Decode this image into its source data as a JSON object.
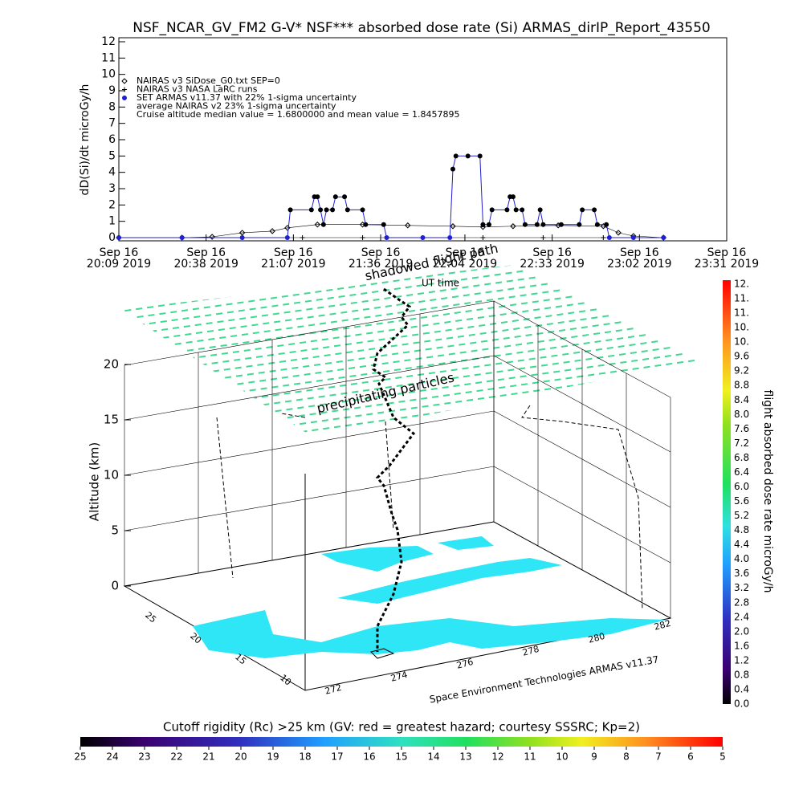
{
  "chart_data": [
    {
      "type": "line",
      "title": "NSF_NCAR_GV_FM2 G-V* NSF*** absorbed dose rate (Si) ARMAS_dirIP_Report_43550",
      "y_label": "dD(Si)/dt microGy/h",
      "xlim": [
        "20:09",
        "23:31"
      ],
      "xticks": [
        {
          "value": "20:09",
          "label": [
            "Sep 16",
            "20:09 2019"
          ]
        },
        {
          "value": "20:38",
          "label": [
            "Sep 16",
            "20:38 2019"
          ]
        },
        {
          "value": "21:07",
          "label": [
            "Sep 16",
            "21:07 2019"
          ]
        },
        {
          "value": "21:36",
          "label": [
            "Sep 16",
            "21:36 2019"
          ]
        },
        {
          "value": "22:04",
          "label": [
            "Sep 16",
            "22:04 2019"
          ]
        },
        {
          "value": "22:33",
          "label": [
            "Sep 16",
            "22:33 2019"
          ]
        },
        {
          "value": "23:02",
          "label": [
            "Sep 16",
            "23:02 2019"
          ]
        },
        {
          "value": "23:31",
          "label": [
            "Sep 16",
            "23:31 2019"
          ]
        }
      ],
      "ylim": [
        0,
        12
      ],
      "yticks": [
        0,
        1,
        2,
        3,
        4,
        5,
        6,
        7,
        8,
        9,
        10,
        11,
        12
      ],
      "series": [
        {
          "name": "NAIRAS v3 SiDose_G0.txt SEP=0",
          "marker": "diamond",
          "color": "#000000",
          "x": [
            "20:09",
            "20:30",
            "20:40",
            "20:50",
            "21:00",
            "21:05",
            "21:15",
            "21:30",
            "21:45",
            "22:00",
            "22:10",
            "22:20",
            "22:35",
            "22:50",
            "22:55",
            "23:00",
            "23:10"
          ],
          "values": [
            0,
            0,
            0.05,
            0.3,
            0.4,
            0.6,
            0.8,
            0.8,
            0.75,
            0.7,
            0.65,
            0.7,
            0.75,
            0.7,
            0.3,
            0.1,
            0
          ]
        },
        {
          "name": "NAIRAS v3 NASA LaRC runs",
          "marker": "plus",
          "color": "#000000",
          "x": [
            "20:09",
            "20:30",
            "20:50",
            "21:10",
            "21:30",
            "21:50",
            "22:10",
            "22:30",
            "22:50",
            "23:10"
          ],
          "values": [
            0,
            0,
            0,
            0,
            0,
            0,
            0,
            0,
            0,
            0
          ]
        },
        {
          "name": "SET ARMAS v11.37 with 22% 1-sigma uncertainty",
          "marker": "dot",
          "color": "#2020d0",
          "x": [
            "20:09",
            "20:30",
            "20:50",
            "21:05",
            "21:06",
            "21:13",
            "21:14",
            "21:15",
            "21:16",
            "21:17",
            "21:18",
            "21:20",
            "21:21",
            "21:24",
            "21:25",
            "21:30",
            "21:31",
            "21:37",
            "21:38",
            "21:50",
            "21:59",
            "22:00",
            "22:01",
            "22:05",
            "22:09",
            "22:10",
            "22:12",
            "22:13",
            "22:18",
            "22:19",
            "22:20",
            "22:21",
            "22:23",
            "22:24",
            "22:28",
            "22:29",
            "22:30",
            "22:36",
            "22:42",
            "22:43",
            "22:47",
            "22:48",
            "22:51",
            "22:52",
            "23:00",
            "23:10"
          ],
          "values": [
            0,
            0,
            0,
            0,
            1.7,
            1.7,
            2.5,
            2.5,
            1.7,
            0.8,
            1.7,
            1.7,
            2.5,
            2.5,
            1.7,
            1.7,
            0.8,
            0.8,
            0,
            0,
            0,
            4.2,
            5.0,
            5.0,
            5.0,
            0.8,
            0.8,
            1.7,
            1.7,
            2.5,
            2.5,
            1.7,
            1.7,
            0.8,
            0.8,
            1.7,
            0.8,
            0.8,
            0.8,
            1.7,
            1.7,
            0.8,
            0.8,
            0,
            0,
            0
          ]
        }
      ],
      "annotations": [
        "average NAIRAS v2 23% 1-sigma uncertainty",
        "Cruise altitude median value = 1.6800000 and mean value = 1.8457895"
      ]
    },
    {
      "type": "surface3d",
      "z_label": "Altitude (km)",
      "zticks": [
        0,
        5,
        10,
        15,
        20
      ],
      "yticks": [
        25,
        20,
        15,
        10
      ],
      "xticks": [
        272,
        274,
        276,
        278,
        280,
        282
      ],
      "annotations": [
        "shadowed flight path",
        "UT time",
        "precipitating particles",
        "Space Environment Technologies ARMAS v11.37"
      ]
    },
    {
      "type": "colorbar",
      "title": "flight absorbed dose rate microGy/h",
      "labels": [
        "0.0",
        "0.4",
        "0.8",
        "1.2",
        "1.6",
        "2.0",
        "2.4",
        "2.8",
        "3.2",
        "3.6",
        "4.0",
        "4.4",
        "4.8",
        "5.2",
        "5.6",
        "6.0",
        "6.4",
        "6.8",
        "7.2",
        "7.6",
        "8.0",
        "8.4",
        "8.8",
        "9.2",
        "9.6",
        "10.",
        "10.",
        "11.",
        "11.",
        "12."
      ]
    },
    {
      "type": "colorbar",
      "title": "Cutoff rigidity (Rc) >25 km (GV: red = greatest hazard; courtesy SSSRC; Kp=2)",
      "xlim": [
        25,
        5
      ],
      "xticks": [
        25,
        24,
        23,
        22,
        21,
        20,
        19,
        18,
        17,
        16,
        15,
        14,
        13,
        12,
        11,
        10,
        9,
        8,
        7,
        6,
        5
      ]
    }
  ]
}
